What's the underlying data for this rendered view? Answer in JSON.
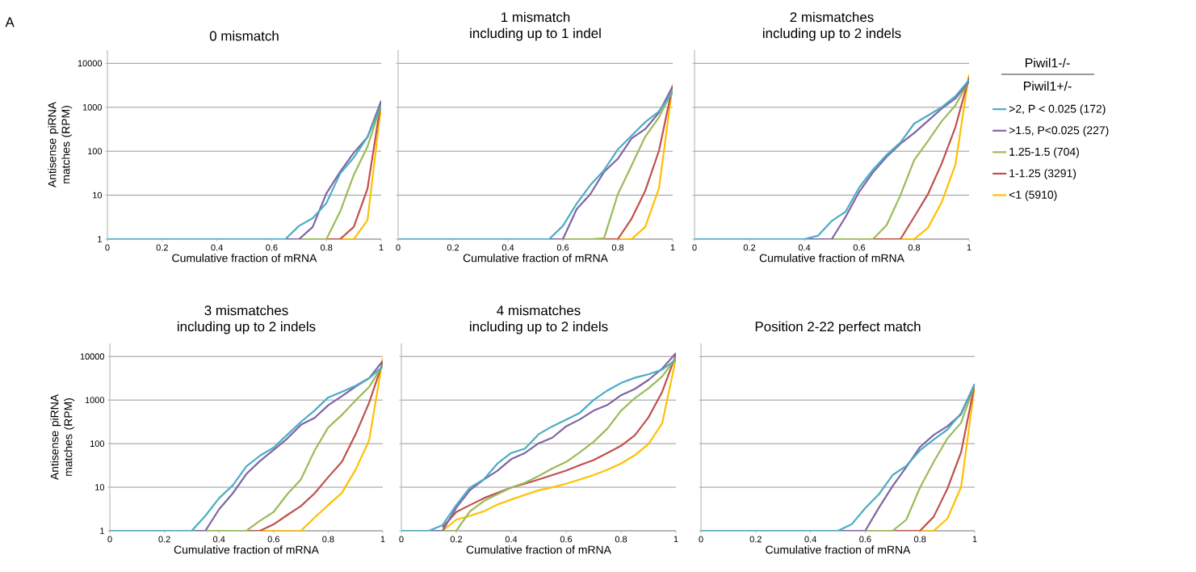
{
  "chart_data": [
    {
      "type": "line",
      "title": "0 mismatch",
      "xlabel": "Cumulative fraction of mRNA",
      "ylabel": "Antisense piRNA matches (RPM)",
      "annotations": [
        "A"
      ],
      "log": true,
      "grid": "y",
      "xlim": [
        0,
        1
      ],
      "ylim": [
        1,
        20000
      ],
      "xticks": [
        0,
        0.2,
        0.4,
        0.6,
        0.8,
        1
      ],
      "yticks": [
        1,
        10,
        100,
        1000,
        10000
      ],
      "x": [
        0,
        0.05,
        0.1,
        0.15,
        0.2,
        0.25,
        0.3,
        0.35,
        0.4,
        0.45,
        0.5,
        0.55,
        0.6,
        0.65,
        0.7,
        0.75,
        0.8,
        0.85,
        0.9,
        0.95,
        1
      ],
      "series": [
        {
          "color": "#4bacc6",
          "values": [
            1,
            1,
            1,
            1,
            1,
            1,
            1,
            1,
            1,
            1,
            1,
            1,
            1,
            1,
            2,
            3,
            6.6,
            31,
            72,
            210,
            1100
          ]
        },
        {
          "color": "#8064a2",
          "values": [
            null,
            null,
            null,
            null,
            null,
            null,
            null,
            null,
            null,
            null,
            null,
            null,
            null,
            1,
            1,
            1.9,
            11,
            34,
            92,
            210,
            1400
          ]
        },
        {
          "color": "#9bbb59",
          "values": [
            null,
            null,
            null,
            null,
            null,
            null,
            null,
            null,
            null,
            null,
            null,
            null,
            null,
            null,
            1,
            1,
            1,
            4.2,
            29,
            127,
            1150
          ]
        },
        {
          "color": "#c0504d",
          "values": [
            null,
            null,
            null,
            null,
            null,
            null,
            null,
            null,
            null,
            null,
            null,
            null,
            null,
            null,
            null,
            null,
            1,
            1,
            1.9,
            14,
            1400
          ]
        },
        {
          "color": "#ffc000",
          "values": [
            null,
            null,
            null,
            null,
            null,
            null,
            null,
            null,
            null,
            null,
            null,
            null,
            null,
            null,
            null,
            null,
            null,
            1,
            1,
            2.7,
            1100
          ]
        }
      ]
    },
    {
      "type": "line",
      "title": "1 mismatch",
      "subtitle": "including up to 1 indel",
      "xlabel": "Cumulative fraction of mRNA",
      "tick_labels": "x",
      "log": true,
      "grid": "y",
      "xlim": [
        0,
        1
      ],
      "ylim": [
        1,
        20000
      ],
      "xticks": [
        0,
        0.2,
        0.4,
        0.6,
        0.8,
        1
      ],
      "yticks": [
        1,
        10,
        100,
        1000,
        10000
      ],
      "x": [
        0,
        0.05,
        0.1,
        0.15,
        0.2,
        0.25,
        0.3,
        0.35,
        0.4,
        0.45,
        0.5,
        0.55,
        0.6,
        0.65,
        0.7,
        0.75,
        0.8,
        0.85,
        0.9,
        0.95,
        1
      ],
      "series": [
        {
          "color": "#4bacc6",
          "values": [
            1,
            1,
            1,
            1,
            1,
            1,
            1,
            1,
            1,
            1,
            1,
            1,
            2,
            6.4,
            17,
            37,
            110,
            225,
            460,
            810,
            2200
          ]
        },
        {
          "color": "#8064a2",
          "values": [
            null,
            null,
            null,
            null,
            null,
            null,
            null,
            null,
            null,
            null,
            null,
            1,
            1,
            4.8,
            10.6,
            34,
            67,
            195,
            320,
            760,
            3000
          ]
        },
        {
          "color": "#9bbb59",
          "values": [
            null,
            null,
            null,
            null,
            null,
            null,
            null,
            null,
            null,
            null,
            null,
            null,
            1,
            1,
            1,
            1.05,
            10.5,
            47,
            215,
            590,
            2500
          ]
        },
        {
          "color": "#c0504d",
          "values": [
            null,
            null,
            null,
            null,
            null,
            null,
            null,
            null,
            null,
            null,
            null,
            null,
            null,
            null,
            null,
            1,
            1,
            2.9,
            12.6,
            103,
            3100
          ]
        },
        {
          "color": "#ffc000",
          "values": [
            null,
            null,
            null,
            null,
            null,
            null,
            null,
            null,
            null,
            null,
            null,
            null,
            null,
            null,
            null,
            null,
            1,
            1,
            1.9,
            14.5,
            3300
          ]
        }
      ]
    },
    {
      "type": "line",
      "title": "2 mismatches",
      "subtitle": "including up to 2 indels",
      "xlabel": "Cumulative fraction of mRNA",
      "tick_labels": "x",
      "legend": "right",
      "legend_title": "Piwil1-/-",
      "annotations": [
        "Piwil1+/-"
      ],
      "log": true,
      "grid": "y",
      "xlim": [
        0,
        1
      ],
      "ylim": [
        1,
        20000
      ],
      "xticks": [
        0,
        0.2,
        0.4,
        0.6,
        0.8,
        1
      ],
      "yticks": [
        1,
        10,
        100,
        1000,
        10000
      ],
      "x": [
        0,
        0.05,
        0.1,
        0.15,
        0.2,
        0.25,
        0.3,
        0.35,
        0.4,
        0.45,
        0.5,
        0.55,
        0.6,
        0.65,
        0.7,
        0.75,
        0.8,
        0.85,
        0.9,
        0.95,
        1
      ],
      "series": [
        {
          "name": ">2, P < 0.025 (172)",
          "color": "#4bacc6",
          "values": [
            1,
            1,
            1,
            1,
            1,
            1,
            1,
            1,
            1,
            1.2,
            2.6,
            4.2,
            15,
            38,
            83,
            158,
            425,
            650,
            1000,
            1780,
            4200
          ]
        },
        {
          "name": ">1.5, P<0.025 (227)",
          "color": "#8064a2",
          "values": [
            null,
            null,
            null,
            null,
            null,
            null,
            null,
            null,
            1,
            1,
            1,
            3.2,
            12,
            33,
            75,
            148,
            260,
            490,
            930,
            1580,
            3900
          ]
        },
        {
          "name": "1.25-1.5 (704)",
          "color": "#9bbb59",
          "values": [
            null,
            null,
            null,
            null,
            null,
            null,
            null,
            null,
            null,
            null,
            1,
            1,
            1,
            1,
            2.1,
            10,
            63,
            170,
            480,
            1100,
            4000
          ]
        },
        {
          "name": "1-1.25 (3291)",
          "color": "#c0504d",
          "values": [
            null,
            null,
            null,
            null,
            null,
            null,
            null,
            null,
            null,
            null,
            null,
            null,
            null,
            1,
            1,
            1,
            3.2,
            10.5,
            52,
            350,
            4800
          ]
        },
        {
          "name": "<1 (5910)",
          "color": "#ffc000",
          "values": [
            null,
            null,
            null,
            null,
            null,
            null,
            null,
            null,
            null,
            null,
            null,
            null,
            null,
            null,
            null,
            1,
            1,
            1.8,
            6.9,
            49,
            5600
          ]
        }
      ]
    },
    {
      "type": "line",
      "title": "3 mismatches",
      "subtitle": "including up to 2 indels",
      "xlabel": "Cumulative fraction of mRNA",
      "ylabel": "Antisense piRNA matches (RPM)",
      "log": true,
      "grid": "y",
      "xlim": [
        0,
        1
      ],
      "ylim": [
        1,
        20000
      ],
      "xticks": [
        0,
        0.2,
        0.4,
        0.6,
        0.8,
        1
      ],
      "yticks": [
        1,
        10,
        100,
        1000,
        10000
      ],
      "x": [
        0,
        0.05,
        0.1,
        0.15,
        0.2,
        0.25,
        0.3,
        0.35,
        0.4,
        0.45,
        0.5,
        0.55,
        0.6,
        0.65,
        0.7,
        0.75,
        0.8,
        0.85,
        0.9,
        0.95,
        1
      ],
      "series": [
        {
          "color": "#4bacc6",
          "values": [
            1,
            1,
            1,
            1,
            1,
            1,
            1,
            2.2,
            5.6,
            11,
            30,
            53,
            81,
            160,
            315,
            575,
            1150,
            1550,
            2130,
            3180,
            5900
          ]
        },
        {
          "color": "#8064a2",
          "values": [
            null,
            null,
            null,
            null,
            null,
            null,
            1,
            1,
            3.1,
            7.2,
            20,
            40,
            72,
            131,
            270,
            390,
            760,
            1230,
            2040,
            3180,
            7900
          ]
        },
        {
          "color": "#9bbb59",
          "values": [
            null,
            null,
            null,
            null,
            null,
            null,
            null,
            1,
            1,
            1,
            1,
            1.7,
            2.7,
            6.9,
            15,
            69,
            235,
            455,
            980,
            2000,
            6400
          ]
        },
        {
          "color": "#c0504d",
          "values": [
            null,
            null,
            null,
            null,
            null,
            null,
            null,
            null,
            null,
            null,
            1,
            1,
            1.4,
            2.3,
            3.7,
            7.2,
            17,
            38,
            162,
            870,
            7400
          ]
        },
        {
          "color": "#ffc000",
          "values": [
            null,
            null,
            null,
            null,
            null,
            null,
            null,
            null,
            null,
            null,
            null,
            1,
            1,
            1,
            1,
            2,
            3.9,
            7.4,
            25,
            119,
            9100
          ]
        }
      ]
    },
    {
      "type": "line",
      "title": "4 mismatches",
      "subtitle": "including up to 2 indels",
      "xlabel": "Cumulative fraction of mRNA",
      "tick_labels": "x",
      "log": true,
      "grid": "y",
      "xlim": [
        0,
        1
      ],
      "ylim": [
        1,
        20000
      ],
      "xticks": [
        0,
        0.2,
        0.4,
        0.6,
        0.8,
        1
      ],
      "yticks": [
        1,
        10,
        100,
        1000,
        10000
      ],
      "x": [
        0,
        0.05,
        0.1,
        0.15,
        0.2,
        0.25,
        0.3,
        0.35,
        0.4,
        0.45,
        0.5,
        0.55,
        0.6,
        0.65,
        0.7,
        0.75,
        0.8,
        0.85,
        0.9,
        0.95,
        1
      ],
      "series": [
        {
          "color": "#4bacc6",
          "values": [
            1,
            1,
            1,
            1.35,
            3.9,
            9.8,
            15,
            35,
            61,
            77,
            165,
            250,
            355,
            510,
            1000,
            1650,
            2460,
            3240,
            3900,
            5000,
            8500
          ]
        },
        {
          "color": "#8064a2",
          "values": [
            null,
            null,
            1,
            1,
            3.4,
            8.6,
            15,
            24,
            44,
            61,
            102,
            137,
            250,
            360,
            570,
            770,
            1290,
            1790,
            2900,
            5300,
            12000
          ]
        },
        {
          "color": "#9bbb59",
          "values": [
            null,
            null,
            null,
            1,
            1,
            2.8,
            4.8,
            6.9,
            9.8,
            12.7,
            18,
            27,
            38,
            63,
            110,
            220,
            570,
            1100,
            1860,
            3500,
            9300
          ]
        },
        {
          "color": "#c0504d",
          "values": [
            null,
            null,
            null,
            1.2,
            2.7,
            3.9,
            5.6,
            7.4,
            9.8,
            12,
            15,
            19,
            24,
            32,
            42,
            61,
            89,
            155,
            400,
            1550,
            11000
          ]
        },
        {
          "color": "#ffc000",
          "values": [
            null,
            null,
            null,
            1,
            1.8,
            2.2,
            2.8,
            4,
            5.2,
            6.7,
            8.5,
            10,
            12,
            15,
            19,
            25,
            35,
            54,
            98,
            295,
            9100
          ]
        }
      ]
    },
    {
      "type": "line",
      "title": "Position 2-22 perfect match",
      "xlabel": "Cumulative fraction of mRNA",
      "tick_labels": "x",
      "log": true,
      "grid": "y",
      "xlim": [
        0,
        1
      ],
      "ylim": [
        1,
        20000
      ],
      "xticks": [
        0,
        0.2,
        0.4,
        0.6,
        0.8,
        1
      ],
      "yticks": [
        1,
        10,
        100,
        1000,
        10000
      ],
      "x": [
        0,
        0.05,
        0.1,
        0.15,
        0.2,
        0.25,
        0.3,
        0.35,
        0.4,
        0.45,
        0.5,
        0.55,
        0.6,
        0.65,
        0.7,
        0.75,
        0.8,
        0.85,
        0.9,
        0.95,
        1
      ],
      "series": [
        {
          "color": "#4bacc6",
          "values": [
            1,
            1,
            1,
            1,
            1,
            1,
            1,
            1,
            1,
            1,
            1,
            1.4,
            3.3,
            6.9,
            19,
            31,
            70,
            124,
            210,
            500,
            2350
          ]
        },
        {
          "color": "#8064a2",
          "values": [
            null,
            null,
            null,
            null,
            null,
            null,
            null,
            null,
            null,
            null,
            1,
            1,
            1,
            3.4,
            10.6,
            29,
            83,
            158,
            250,
            470,
            2350
          ]
        },
        {
          "color": "#9bbb59",
          "values": [
            null,
            null,
            null,
            null,
            null,
            null,
            null,
            null,
            null,
            null,
            null,
            null,
            1,
            1,
            1,
            1.8,
            9.8,
            38,
            131,
            300,
            2300
          ]
        },
        {
          "color": "#c0504d",
          "values": [
            null,
            null,
            null,
            null,
            null,
            null,
            null,
            null,
            null,
            null,
            null,
            null,
            null,
            null,
            1,
            1,
            1,
            2.1,
            9.2,
            63,
            2300
          ]
        },
        {
          "color": "#ffc000",
          "values": [
            null,
            null,
            null,
            null,
            null,
            null,
            null,
            null,
            null,
            null,
            null,
            null,
            null,
            null,
            null,
            null,
            1,
            1,
            1.9,
            10,
            2200
          ]
        }
      ]
    }
  ]
}
